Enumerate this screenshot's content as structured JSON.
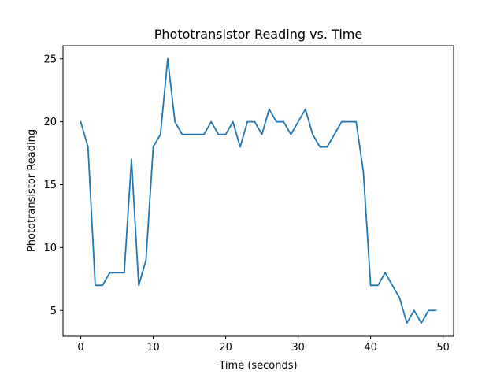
{
  "chart_data": {
    "type": "line",
    "title": "Phototransistor Reading vs. Time",
    "xlabel": "Time (seconds)",
    "ylabel": "Phototransistor Reading",
    "xlim": [
      -2.45,
      51.45
    ],
    "ylim": [
      2.95,
      26.05
    ],
    "xticks": [
      0,
      10,
      20,
      30,
      40,
      50
    ],
    "yticks": [
      5,
      10,
      15,
      20,
      25
    ],
    "grid": false,
    "series": [
      {
        "color": "#1f77b4",
        "x": [
          0,
          1,
          2,
          3,
          4,
          5,
          6,
          7,
          8,
          9,
          10,
          11,
          12,
          13,
          14,
          15,
          16,
          17,
          18,
          19,
          20,
          21,
          22,
          23,
          24,
          25,
          26,
          27,
          28,
          29,
          30,
          31,
          32,
          33,
          34,
          35,
          36,
          37,
          38,
          39,
          40,
          41,
          42,
          43,
          44,
          45,
          46,
          47,
          48,
          49
        ],
        "values": [
          20,
          18,
          7,
          7,
          8,
          8,
          8,
          17,
          7,
          9,
          18,
          19,
          25,
          20,
          19,
          19,
          19,
          19,
          20,
          19,
          19,
          20,
          18,
          20,
          20,
          19,
          21,
          20,
          20,
          19,
          20,
          21,
          19,
          18,
          18,
          19,
          20,
          20,
          20,
          16,
          7,
          7,
          8,
          7,
          6,
          4,
          5,
          4,
          5,
          5
        ]
      }
    ]
  }
}
